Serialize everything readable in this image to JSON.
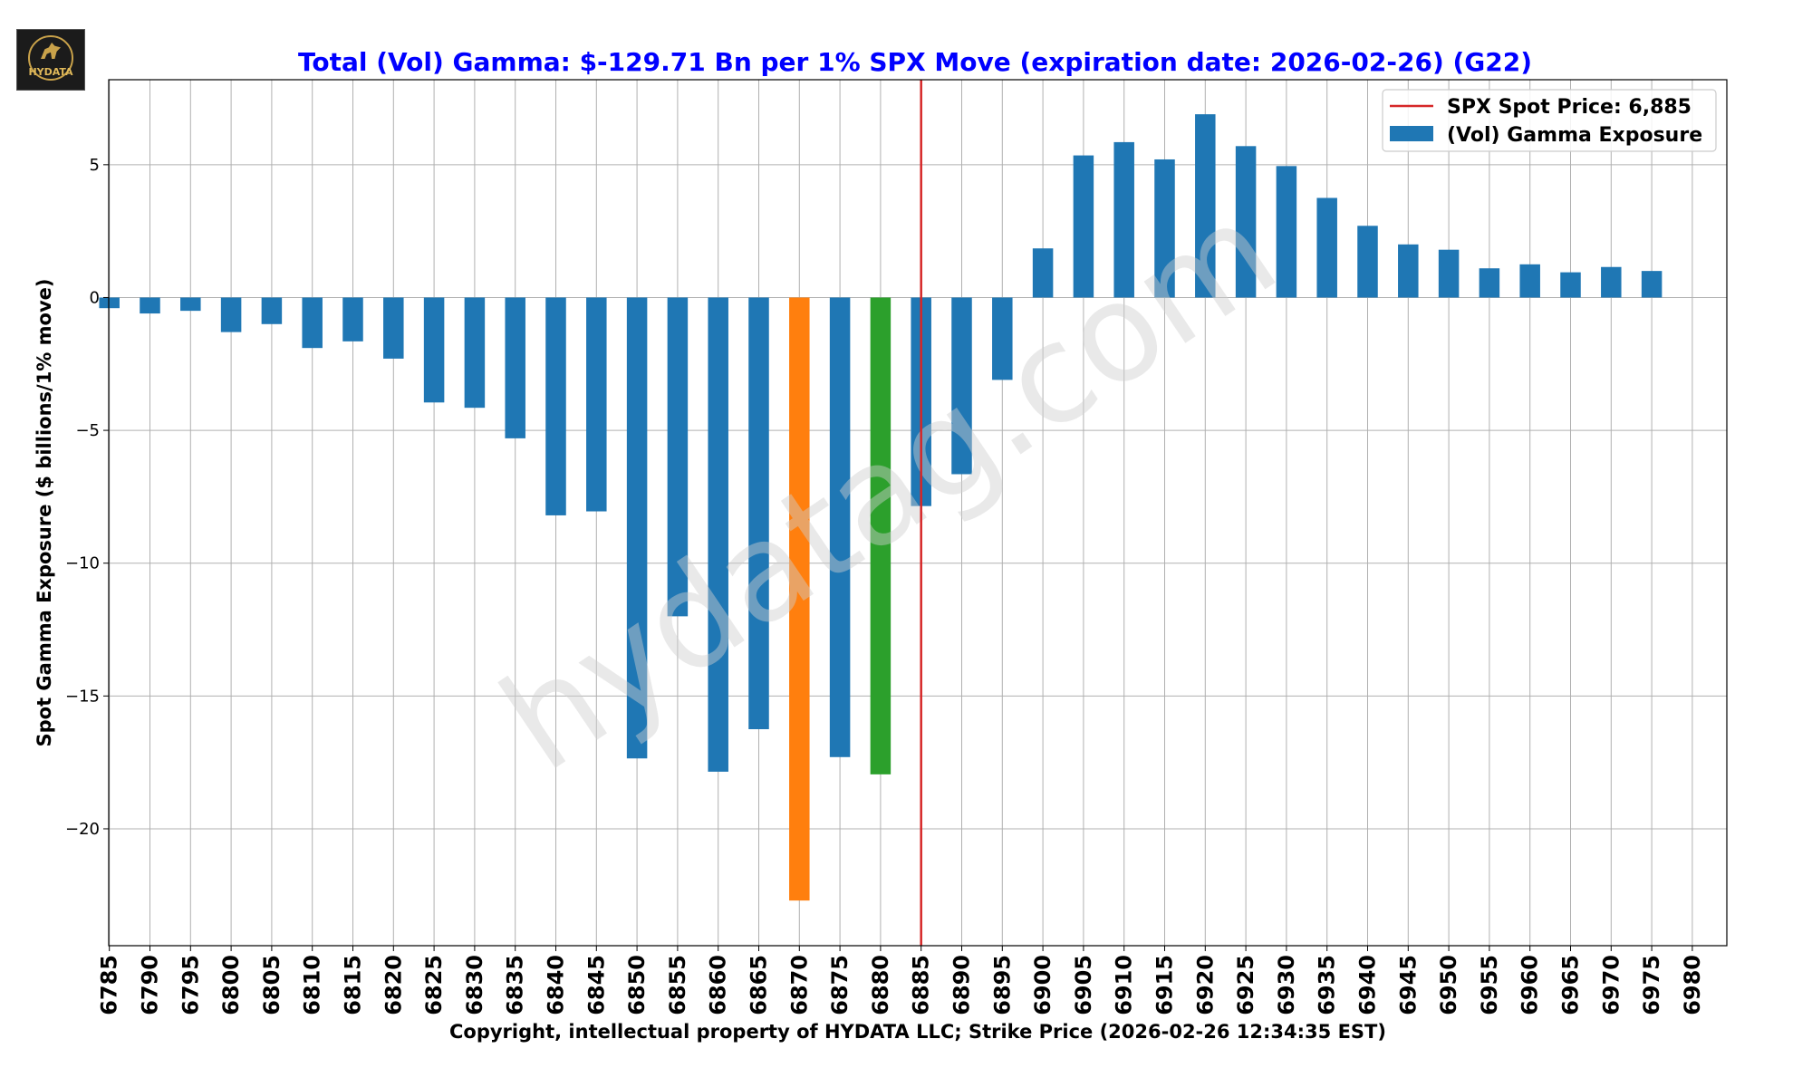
{
  "logo": {
    "text": "HYDATA"
  },
  "watermark": "hydatag.com",
  "colors": {
    "bar": "#1f77b4",
    "orange": "#ff7f0e",
    "green": "#2ca02c",
    "spot": "#d62728",
    "title": "#0000ff"
  },
  "chart_data": {
    "type": "bar",
    "title": "Total (Vol) Gamma: $-129.71 Bn per 1% SPX Move (expiration date: 2026-02-26) (G22)",
    "xlabel": "Copyright, intellectual property of HYDATA LLC; Strike Price (2026-02-26 12:34:35 EST)",
    "ylabel": "Spot Gamma Exposure ($ billions/1% move)",
    "ylim": [
      -24.4,
      8.2
    ],
    "yticks": [
      5,
      0,
      -5,
      -10,
      -15,
      -20
    ],
    "ytick_labels": [
      "5",
      "0",
      "−5",
      "−10",
      "−15",
      "−20"
    ],
    "categories": [
      "6785",
      "6790",
      "6795",
      "6800",
      "6805",
      "6810",
      "6815",
      "6820",
      "6825",
      "6830",
      "6835",
      "6840",
      "6845",
      "6850",
      "6855",
      "6860",
      "6865",
      "6870",
      "6875",
      "6880",
      "6885",
      "6890",
      "6895",
      "6900",
      "6905",
      "6910",
      "6915",
      "6920",
      "6925",
      "6930",
      "6935",
      "6940",
      "6945",
      "6950",
      "6955",
      "6960",
      "6965",
      "6970",
      "6975",
      "6980"
    ],
    "values": [
      -0.4,
      -0.6,
      -0.5,
      -1.3,
      -1.0,
      -1.9,
      -1.65,
      -2.3,
      -3.95,
      -4.15,
      -5.3,
      -8.2,
      -8.05,
      -17.35,
      -12.0,
      -17.85,
      -16.25,
      -22.7,
      -17.3,
      -17.95,
      -7.85,
      -6.65,
      -3.1,
      1.85,
      5.35,
      5.85,
      5.2,
      6.9,
      5.7,
      4.95,
      3.75,
      2.7,
      2.0,
      1.8,
      1.1,
      1.25,
      0.95,
      1.15,
      1.0,
      null
    ],
    "highlight": {
      "6870": "orange",
      "6880": "green"
    },
    "spot": {
      "value": "6885",
      "label": "SPX Spot Price: 6,885"
    },
    "legend": {
      "position": "top-right",
      "spot_label": "SPX Spot Price: 6,885",
      "bar_label": "(Vol) Gamma Exposure"
    },
    "grid": true
  }
}
